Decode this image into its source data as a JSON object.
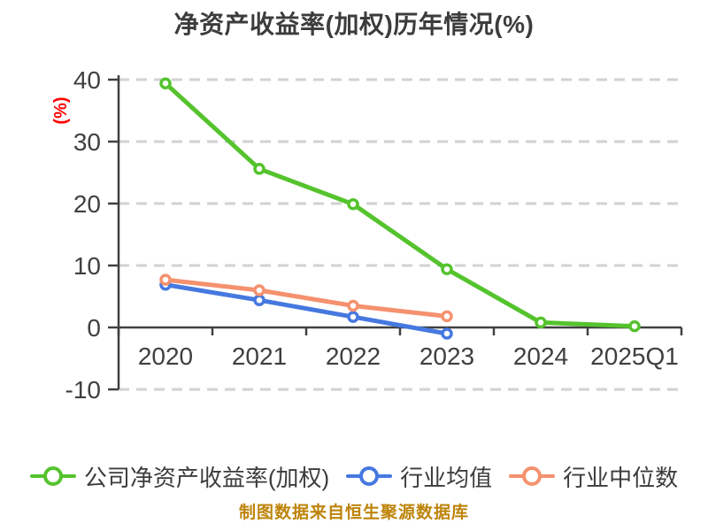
{
  "title": "净资产收益率(加权)历年情况(%)",
  "source_note": "制图数据来自恒生聚源数据库",
  "colors": {
    "company": "#55c32d",
    "industry_avg": "#4678e0",
    "industry_median": "#f5916e",
    "title_text": "#3c3c3c",
    "axis_text": "#3f3f3f",
    "axis_line": "#404040",
    "grid_line": "#d2d2d2",
    "y_unit_text": "#ff0000",
    "source_text": "#be840a",
    "background": "#ffffff"
  },
  "legend": [
    {
      "label": "公司净资产收益率(加权)",
      "color": "#55c32d"
    },
    {
      "label": "行业均值",
      "color": "#4678e0"
    },
    {
      "label": "行业中位数",
      "color": "#f5916e"
    }
  ],
  "chart_data": {
    "type": "line",
    "title": "净资产收益率(加权)历年情况(%)",
    "xlabel": "",
    "ylabel": "(%)",
    "categories": [
      "2020",
      "2021",
      "2022",
      "2023",
      "2024",
      "2025Q1"
    ],
    "series": [
      {
        "name": "公司净资产收益率(加权)",
        "color": "#55c32d",
        "values": [
          39.4,
          25.6,
          19.9,
          9.4,
          0.8,
          0.2
        ]
      },
      {
        "name": "行业均值",
        "color": "#4678e0",
        "values": [
          6.9,
          4.4,
          1.7,
          -1.0,
          null,
          null
        ]
      },
      {
        "name": "行业中位数",
        "color": "#f5916e",
        "values": [
          7.7,
          6.0,
          3.5,
          1.8,
          null,
          null
        ]
      }
    ],
    "ylim": [
      -10,
      40.7
    ],
    "yticks": [
      40,
      30,
      20,
      10,
      0,
      -10
    ],
    "grid": "dashed horizontal gridlines at 40/30/20/10/-10, solid axis at 0",
    "legend_position": "bottom",
    "marker": "circle-white-fill-colored-ring"
  }
}
